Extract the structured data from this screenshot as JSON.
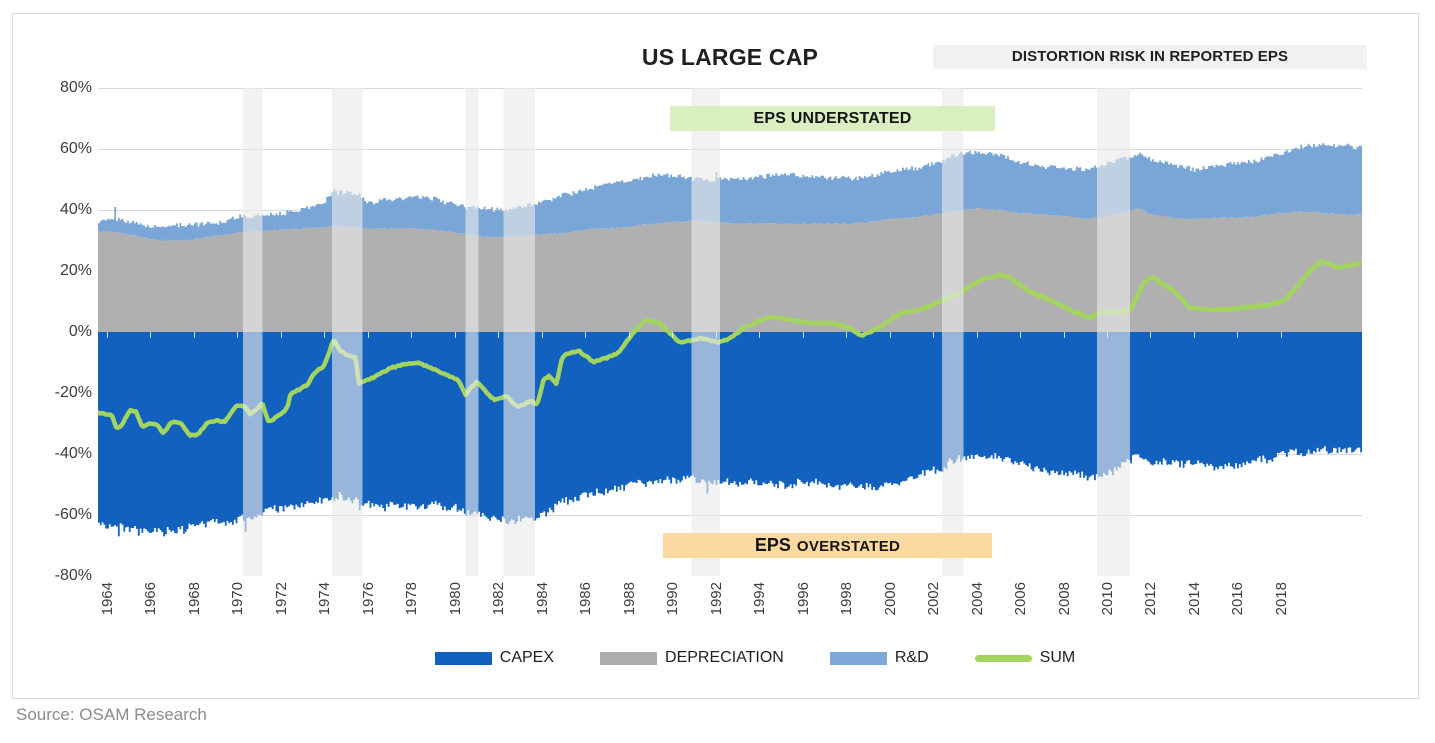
{
  "header": {
    "title": "US LARGE CAP",
    "distortion_label": "DISTORTION RISK IN REPORTED EPS"
  },
  "annotations": {
    "understated": "EPS UNDERSTATED",
    "overstated_prefix": "EPS",
    "overstated_rest": "OVERSTATED"
  },
  "footer": {
    "source": "Source: OSAM Research"
  },
  "legend": [
    {
      "label": "CAPEX",
      "color": "#1261BE",
      "type": "rect"
    },
    {
      "label": "DEPRECIATION",
      "color": "#ACACAC",
      "type": "rect"
    },
    {
      "label": "R&D",
      "color": "#7FA8D8",
      "type": "rect"
    },
    {
      "label": "SUM",
      "color": "#A2D45F",
      "type": "line"
    }
  ],
  "colors": {
    "capex": "#1261BE",
    "depreciation": "#B0B0B0",
    "rd": "#79A6D6",
    "sum": "#A2D45F",
    "grid": "#D9D9D9",
    "band": "rgba(234,234,234,0.62)",
    "tick": "rgba(240,240,240,0.85)",
    "box_green": "#D9EFC0",
    "box_orange": "#FBD9A0",
    "box_gray": "#F1F1F1"
  },
  "chart_data": {
    "type": "area",
    "title": "US LARGE CAP",
    "xlabel": "",
    "ylabel": "",
    "x_domain": [
      1963.59,
      2021.73
    ],
    "ylim": [
      -80,
      80
    ],
    "grid": true,
    "legend_position": "bottom",
    "y_ticks": [
      80,
      60,
      40,
      20,
      0,
      -20,
      -40,
      -60,
      -80
    ],
    "x_ticks": [
      1964,
      1966,
      1968,
      1970,
      1972,
      1974,
      1976,
      1978,
      1980,
      1982,
      1984,
      1986,
      1988,
      1990,
      1992,
      1994,
      1996,
      1998,
      2000,
      2002,
      2004,
      2006,
      2008,
      2010,
      2012,
      2014,
      2016,
      2018
    ],
    "recession_bands": [
      [
        1970.25,
        1971.15
      ],
      [
        1974.35,
        1975.75
      ],
      [
        1980.5,
        1981.1
      ],
      [
        1982.25,
        1983.7
      ],
      [
        1990.9,
        1992.2
      ],
      [
        2002.4,
        2003.4
      ],
      [
        2009.55,
        2011.05
      ]
    ],
    "series": {
      "depreciation_top": [
        [
          1963.6,
          33
        ],
        [
          1964.5,
          32.5
        ],
        [
          1965,
          32
        ],
        [
          1966,
          30.5
        ],
        [
          1966.5,
          30
        ],
        [
          1967.5,
          30
        ],
        [
          1968,
          30.5
        ],
        [
          1969,
          31.5
        ],
        [
          1970,
          32.5
        ],
        [
          1971,
          33
        ],
        [
          1972,
          33.5
        ],
        [
          1973,
          34
        ],
        [
          1974,
          34.5
        ],
        [
          1975,
          34.5
        ],
        [
          1976,
          34
        ],
        [
          1978,
          34
        ],
        [
          1979,
          33.5
        ],
        [
          1980,
          32.5
        ],
        [
          1981,
          31.5
        ],
        [
          1982,
          31
        ],
        [
          1983,
          31.5
        ],
        [
          1984,
          32
        ],
        [
          1985,
          32.5
        ],
        [
          1986,
          33.5
        ],
        [
          1987,
          34
        ],
        [
          1988,
          34.5
        ],
        [
          1989,
          35.5
        ],
        [
          1990,
          36
        ],
        [
          1991,
          36.5
        ],
        [
          1992,
          36
        ],
        [
          1993,
          35.5
        ],
        [
          1996,
          35.5
        ],
        [
          1998,
          35.5
        ],
        [
          1999,
          36
        ],
        [
          2000,
          37
        ],
        [
          2001,
          37.5
        ],
        [
          2002,
          38.5
        ],
        [
          2003,
          39.5
        ],
        [
          2004,
          40.5
        ],
        [
          2005,
          40
        ],
        [
          2006,
          39
        ],
        [
          2007,
          38.5
        ],
        [
          2008,
          38
        ],
        [
          2009,
          37
        ],
        [
          2010,
          38
        ],
        [
          2011.5,
          40.5
        ],
        [
          2012,
          38.5
        ],
        [
          2013,
          37.5
        ],
        [
          2014,
          37
        ],
        [
          2015,
          37.5
        ],
        [
          2016,
          37.5
        ],
        [
          2017,
          38
        ],
        [
          2018,
          39
        ],
        [
          2019,
          39.5
        ],
        [
          2020,
          39
        ],
        [
          2021,
          38.5
        ],
        [
          2021.7,
          38.5
        ]
      ],
      "stack_top": [
        [
          1963.6,
          36.5
        ],
        [
          1964.3,
          37
        ],
        [
          1965,
          36
        ],
        [
          1966,
          34.5
        ],
        [
          1967,
          34.5
        ],
        [
          1968,
          35
        ],
        [
          1969,
          36
        ],
        [
          1970,
          37.5
        ],
        [
          1971,
          38
        ],
        [
          1972,
          39
        ],
        [
          1973,
          40.5
        ],
        [
          1973.8,
          42
        ],
        [
          1974.4,
          45.5
        ],
        [
          1975,
          46
        ],
        [
          1975.6,
          45
        ],
        [
          1976,
          42.5
        ],
        [
          1977,
          43.5
        ],
        [
          1978,
          44
        ],
        [
          1979,
          43.5
        ],
        [
          1980,
          42
        ],
        [
          1980.6,
          40.5
        ],
        [
          1981,
          40.5
        ],
        [
          1982,
          40
        ],
        [
          1983,
          41
        ],
        [
          1984,
          42.5
        ],
        [
          1985,
          45
        ],
        [
          1986,
          47
        ],
        [
          1987,
          48.5
        ],
        [
          1988,
          50
        ],
        [
          1989,
          51
        ],
        [
          1990,
          51.5
        ],
        [
          1991,
          50.5
        ],
        [
          1992,
          50
        ],
        [
          1993,
          50
        ],
        [
          1994,
          51
        ],
        [
          1995,
          51.5
        ],
        [
          1996,
          51
        ],
        [
          1997,
          50.5
        ],
        [
          1998,
          50.5
        ],
        [
          1999,
          51
        ],
        [
          2000,
          52.5
        ],
        [
          2001,
          53.5
        ],
        [
          2002,
          55.5
        ],
        [
          2003,
          58
        ],
        [
          2003.5,
          58.8
        ],
        [
          2004,
          59
        ],
        [
          2005,
          58
        ],
        [
          2006,
          55.5
        ],
        [
          2007,
          54.5
        ],
        [
          2008,
          54
        ],
        [
          2009,
          53
        ],
        [
          2010,
          55
        ],
        [
          2011.4,
          58.5
        ],
        [
          2012,
          56.5
        ],
        [
          2013,
          54.5
        ],
        [
          2014,
          53.5
        ],
        [
          2015,
          54.5
        ],
        [
          2016,
          55
        ],
        [
          2017,
          56.5
        ],
        [
          2018,
          59
        ],
        [
          2019,
          61
        ],
        [
          2019.6,
          61.8
        ],
        [
          2020.4,
          60.5
        ],
        [
          2021,
          61
        ],
        [
          2021.7,
          60.5
        ]
      ],
      "capex_bottom": [
        [
          1963.6,
          -62.5
        ],
        [
          1964.3,
          -63.5
        ],
        [
          1965,
          -64.5
        ],
        [
          1966,
          -65.5
        ],
        [
          1967,
          -65
        ],
        [
          1968,
          -63.5
        ],
        [
          1969,
          -62
        ],
        [
          1970,
          -61.5
        ],
        [
          1971,
          -59.5
        ],
        [
          1972,
          -58
        ],
        [
          1973,
          -56.5
        ],
        [
          1974,
          -55
        ],
        [
          1974.6,
          -53.5
        ],
        [
          1975.2,
          -55.5
        ],
        [
          1976.5,
          -57.5
        ],
        [
          1977,
          -56.5
        ],
        [
          1978.5,
          -57.5
        ],
        [
          1979,
          -56
        ],
        [
          1980,
          -57.5
        ],
        [
          1980.6,
          -60
        ],
        [
          1981,
          -59
        ],
        [
          1982,
          -61.5
        ],
        [
          1982.5,
          -62
        ],
        [
          1983.5,
          -61
        ],
        [
          1984,
          -59.5
        ],
        [
          1985,
          -55.5
        ],
        [
          1986,
          -53.5
        ],
        [
          1987,
          -52.5
        ],
        [
          1988,
          -51
        ],
        [
          1989,
          -49.5
        ],
        [
          1990,
          -48
        ],
        [
          1991,
          -48
        ],
        [
          1992,
          -49
        ],
        [
          1993,
          -49.5
        ],
        [
          1994,
          -50
        ],
        [
          1995,
          -50
        ],
        [
          1996,
          -49.5
        ],
        [
          1997,
          -49.5
        ],
        [
          1998.5,
          -51
        ],
        [
          1999,
          -51
        ],
        [
          2000,
          -49.5
        ],
        [
          2001,
          -48
        ],
        [
          2002,
          -45.5
        ],
        [
          2003,
          -42.5
        ],
        [
          2004,
          -41
        ],
        [
          2005,
          -41
        ],
        [
          2006,
          -43.5
        ],
        [
          2007,
          -45.5
        ],
        [
          2008,
          -46
        ],
        [
          2009,
          -47.5
        ],
        [
          2010,
          -47
        ],
        [
          2010.8,
          -42.5
        ],
        [
          2011.3,
          -41.2
        ],
        [
          2012,
          -42.5
        ],
        [
          2013.4,
          -42.8
        ],
        [
          2015.2,
          -44.4
        ],
        [
          2016,
          -44
        ],
        [
          2017,
          -42
        ],
        [
          2018,
          -40.5
        ],
        [
          2019,
          -39.5
        ],
        [
          2020.5,
          -38.6
        ],
        [
          2021.7,
          -38.6
        ]
      ],
      "sum": [
        [
          1963.6,
          -26.5
        ],
        [
          1964.2,
          -27
        ],
        [
          1964.45,
          -31.5
        ],
        [
          1964.7,
          -30.5
        ],
        [
          1965.05,
          -25.5
        ],
        [
          1965.35,
          -26
        ],
        [
          1965.6,
          -31
        ],
        [
          1966,
          -30
        ],
        [
          1966.3,
          -30.5
        ],
        [
          1966.6,
          -33
        ],
        [
          1967,
          -29.5
        ],
        [
          1967.4,
          -30
        ],
        [
          1967.8,
          -34
        ],
        [
          1968.2,
          -33.5
        ],
        [
          1968.6,
          -30
        ],
        [
          1969,
          -29
        ],
        [
          1969.4,
          -29.5
        ],
        [
          1970,
          -24
        ],
        [
          1970.35,
          -24.5
        ],
        [
          1970.6,
          -27
        ],
        [
          1971.15,
          -23.5
        ],
        [
          1971.45,
          -29.5
        ],
        [
          1971.9,
          -27.5
        ],
        [
          1972.3,
          -25
        ],
        [
          1972.45,
          -20
        ],
        [
          1972.8,
          -19
        ],
        [
          1973.2,
          -17.5
        ],
        [
          1973.55,
          -13.5
        ],
        [
          1974,
          -11
        ],
        [
          1974.3,
          -5
        ],
        [
          1974.45,
          -2.5
        ],
        [
          1974.7,
          -6
        ],
        [
          1975,
          -7.5
        ],
        [
          1975.45,
          -8.5
        ],
        [
          1975.58,
          -17
        ],
        [
          1975.9,
          -16
        ],
        [
          1976.4,
          -14.5
        ],
        [
          1977,
          -12
        ],
        [
          1977.5,
          -10.8
        ],
        [
          1978.4,
          -10.2
        ],
        [
          1979.6,
          -14
        ],
        [
          1980.2,
          -16
        ],
        [
          1980.5,
          -20.5
        ],
        [
          1981,
          -16.3
        ],
        [
          1981.8,
          -22.2
        ],
        [
          1982.4,
          -21
        ],
        [
          1982.9,
          -24.8
        ],
        [
          1983.5,
          -22.5
        ],
        [
          1983.8,
          -23.8
        ],
        [
          1984.1,
          -15.7
        ],
        [
          1984.35,
          -14.5
        ],
        [
          1984.7,
          -17
        ],
        [
          1984.95,
          -8
        ],
        [
          1985.3,
          -7
        ],
        [
          1985.7,
          -6
        ],
        [
          1986.4,
          -10
        ],
        [
          1987,
          -8.5
        ],
        [
          1987.5,
          -7
        ],
        [
          1988.2,
          -0.4
        ],
        [
          1988.8,
          3.9
        ],
        [
          1989.4,
          2.9
        ],
        [
          1990.4,
          -3.6
        ],
        [
          1991.3,
          -2
        ],
        [
          1992.1,
          -3.3
        ],
        [
          1992.6,
          -2.5
        ],
        [
          1993.3,
          1.3
        ],
        [
          1994,
          3.5
        ],
        [
          1994.5,
          4.9
        ],
        [
          1995.4,
          4.2
        ],
        [
          1996.3,
          2.9
        ],
        [
          1997.3,
          3
        ],
        [
          1998.2,
          1.3
        ],
        [
          1998.7,
          -1.2
        ],
        [
          1999.6,
          1.6
        ],
        [
          2000.5,
          6.2
        ],
        [
          2001.4,
          7.2
        ],
        [
          2002.3,
          9.8
        ],
        [
          2003.2,
          12.7
        ],
        [
          2004.2,
          17
        ],
        [
          2005.2,
          18.8
        ],
        [
          2005.5,
          18
        ],
        [
          2006.5,
          13.1
        ],
        [
          2007.4,
          10.5
        ],
        [
          2008.3,
          7.2
        ],
        [
          2009.2,
          4.6
        ],
        [
          2009.7,
          6.2
        ],
        [
          2010.4,
          6.5
        ],
        [
          2011.1,
          7.2
        ],
        [
          2011.7,
          16
        ],
        [
          2012.1,
          18
        ],
        [
          2012.4,
          16.5
        ],
        [
          2013.1,
          13.7
        ],
        [
          2013.8,
          8.2
        ],
        [
          2014.7,
          7.2
        ],
        [
          2015.7,
          7.5
        ],
        [
          2016.6,
          8.2
        ],
        [
          2017.5,
          8.8
        ],
        [
          2018.2,
          10.5
        ],
        [
          2018.9,
          16
        ],
        [
          2019.4,
          20.5
        ],
        [
          2019.9,
          23.3
        ],
        [
          2020.7,
          21
        ],
        [
          2021.3,
          22
        ],
        [
          2021.7,
          22.5
        ]
      ]
    },
    "spikes": {
      "stack_top": [
        [
          1964.3,
          41
        ],
        [
          1974.45,
          46.8
        ],
        [
          1992.0,
          52.5
        ]
      ],
      "capex_bottom": [
        [
          1964.5,
          -67
        ],
        [
          1965.4,
          -66.8
        ],
        [
          1966.6,
          -67
        ],
        [
          1967.5,
          -66.2
        ],
        [
          1970.35,
          -65.5
        ],
        [
          1975.6,
          -58.5
        ],
        [
          1982.4,
          -63
        ],
        [
          1991.6,
          -53
        ]
      ]
    }
  }
}
